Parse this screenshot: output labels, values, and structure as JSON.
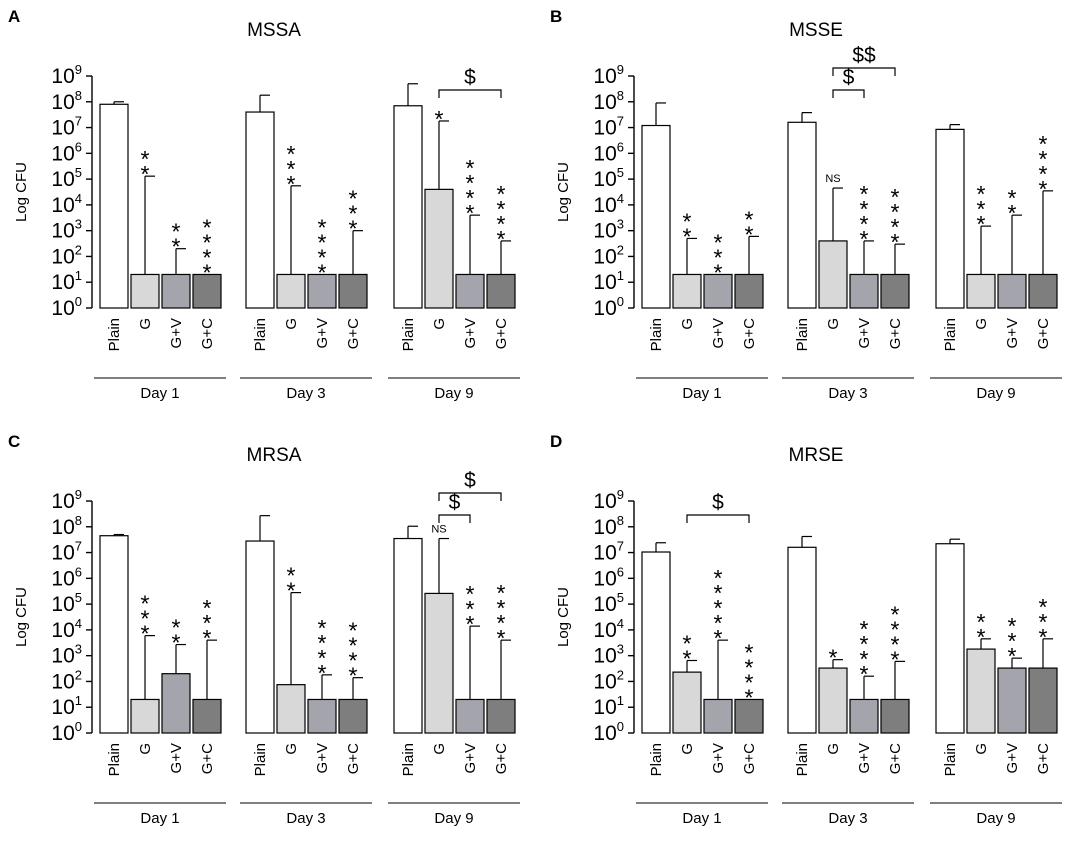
{
  "chart_data": [
    {
      "type": "bar",
      "panel": "A",
      "title": "MSSA",
      "ylabel": "Log CFU",
      "yscale": "log10",
      "ylim_exp": [
        0,
        9
      ],
      "yticks": [
        "10",
        "10",
        "10",
        "10",
        "10",
        "10",
        "10",
        "10",
        "10",
        "10"
      ],
      "ytick_exps": [
        "0",
        "1",
        "2",
        "3",
        "4",
        "5",
        "6",
        "7",
        "8",
        "9"
      ],
      "categories": [
        "Plain",
        "G",
        "G+V",
        "G+C"
      ],
      "groups": [
        {
          "label": "Day 1",
          "bars": [
            {
              "cat": "Plain",
              "value": 80000000.0,
              "err": 100000000.0,
              "sig": ""
            },
            {
              "cat": "G",
              "value": 20,
              "err": 130000.0,
              "sig": "**"
            },
            {
              "cat": "G+V",
              "value": 20,
              "err": 200,
              "sig": "**"
            },
            {
              "cat": "G+C",
              "value": 20,
              "err": 20,
              "sig": "****"
            }
          ]
        },
        {
          "label": "Day 3",
          "bars": [
            {
              "cat": "Plain",
              "value": 40000000.0,
              "err": 180000000.0,
              "sig": ""
            },
            {
              "cat": "G",
              "value": 20,
              "err": 55000.0,
              "sig": "***"
            },
            {
              "cat": "G+V",
              "value": 20,
              "err": 20,
              "sig": "****"
            },
            {
              "cat": "G+C",
              "value": 20,
              "err": 1000,
              "sig": "***"
            }
          ]
        },
        {
          "label": "Day 9",
          "bars": [
            {
              "cat": "Plain",
              "value": 70000000.0,
              "err": 500000000.0,
              "sig": ""
            },
            {
              "cat": "G",
              "value": 40000.0,
              "err": 18000000.0,
              "sig": "*"
            },
            {
              "cat": "G+V",
              "value": 20,
              "err": 4000,
              "sig": "****"
            },
            {
              "cat": "G+C",
              "value": 20,
              "err": 400,
              "sig": "****"
            }
          ]
        }
      ],
      "brackets": [
        {
          "group": 2,
          "from": 1,
          "to": 3,
          "label": "$",
          "level": 0
        }
      ]
    },
    {
      "type": "bar",
      "panel": "B",
      "title": "MSSE",
      "ylabel": "Log CFU",
      "yscale": "log10",
      "ylim_exp": [
        0,
        9
      ],
      "yticks": [
        "10",
        "10",
        "10",
        "10",
        "10",
        "10",
        "10",
        "10",
        "10",
        "10"
      ],
      "ytick_exps": [
        "0",
        "1",
        "2",
        "3",
        "4",
        "5",
        "6",
        "7",
        "8",
        "9"
      ],
      "categories": [
        "Plain",
        "G",
        "G+V",
        "G+C"
      ],
      "groups": [
        {
          "label": "Day 1",
          "bars": [
            {
              "cat": "Plain",
              "value": 12000000.0,
              "err": 90000000.0,
              "sig": ""
            },
            {
              "cat": "G",
              "value": 20,
              "err": 500,
              "sig": "**"
            },
            {
              "cat": "G+V",
              "value": 20,
              "err": 20,
              "sig": "***"
            },
            {
              "cat": "G+C",
              "value": 20,
              "err": 600,
              "sig": "**"
            }
          ]
        },
        {
          "label": "Day 3",
          "bars": [
            {
              "cat": "Plain",
              "value": 16000000.0,
              "err": 38000000.0,
              "sig": ""
            },
            {
              "cat": "G",
              "value": 400,
              "err": 45000.0,
              "sig": "NS"
            },
            {
              "cat": "G+V",
              "value": 20,
              "err": 400,
              "sig": "****"
            },
            {
              "cat": "G+C",
              "value": 20,
              "err": 300,
              "sig": "****"
            }
          ]
        },
        {
          "label": "Day 9",
          "bars": [
            {
              "cat": "Plain",
              "value": 8500000.0,
              "err": 13000000.0,
              "sig": ""
            },
            {
              "cat": "G",
              "value": 20,
              "err": 1500,
              "sig": "***"
            },
            {
              "cat": "G+V",
              "value": 20,
              "err": 4000,
              "sig": "**"
            },
            {
              "cat": "G+C",
              "value": 20,
              "err": 35000.0,
              "sig": "****"
            }
          ]
        }
      ],
      "brackets": [
        {
          "group": 1,
          "from": 1,
          "to": 2,
          "label": "$",
          "level": 0
        },
        {
          "group": 1,
          "from": 1,
          "to": 3,
          "label": "$$",
          "level": 1
        }
      ]
    },
    {
      "type": "bar",
      "panel": "C",
      "title": "MRSA",
      "ylabel": "Log CFU",
      "yscale": "log10",
      "ylim_exp": [
        0,
        9
      ],
      "yticks": [
        "10",
        "10",
        "10",
        "10",
        "10",
        "10",
        "10",
        "10",
        "10",
        "10"
      ],
      "ytick_exps": [
        "0",
        "1",
        "2",
        "3",
        "4",
        "5",
        "6",
        "7",
        "8",
        "9"
      ],
      "categories": [
        "Plain",
        "G",
        "G+V",
        "G+C"
      ],
      "groups": [
        {
          "label": "Day 1",
          "bars": [
            {
              "cat": "Plain",
              "value": 45000000.0,
              "err": 50000000.0,
              "sig": ""
            },
            {
              "cat": "G",
              "value": 20,
              "err": 6000,
              "sig": "***"
            },
            {
              "cat": "G+V",
              "value": 200,
              "err": 2700,
              "sig": "**"
            },
            {
              "cat": "G+C",
              "value": 20,
              "err": 4000,
              "sig": "***"
            }
          ]
        },
        {
          "label": "Day 3",
          "bars": [
            {
              "cat": "Plain",
              "value": 28000000.0,
              "err": 270000000.0,
              "sig": ""
            },
            {
              "cat": "G",
              "value": 75,
              "err": 280000.0,
              "sig": "**"
            },
            {
              "cat": "G+V",
              "value": 20,
              "err": 180,
              "sig": "****"
            },
            {
              "cat": "G+C",
              "value": 20,
              "err": 140,
              "sig": "****"
            }
          ]
        },
        {
          "label": "Day 9",
          "bars": [
            {
              "cat": "Plain",
              "value": 35000000.0,
              "err": 105000000.0,
              "sig": ""
            },
            {
              "cat": "G",
              "value": 260000.0,
              "err": 35000000.0,
              "sig": "NS"
            },
            {
              "cat": "G+V",
              "value": 20,
              "err": 14000.0,
              "sig": "***"
            },
            {
              "cat": "G+C",
              "value": 20,
              "err": 4000,
              "sig": "****"
            }
          ]
        }
      ],
      "brackets": [
        {
          "group": 2,
          "from": 1,
          "to": 2,
          "label": "$",
          "level": 0
        },
        {
          "group": 2,
          "from": 1,
          "to": 3,
          "label": "$",
          "level": 1
        }
      ]
    },
    {
      "type": "bar",
      "panel": "D",
      "title": "MRSE",
      "ylabel": "Log CFU",
      "yscale": "log10",
      "ylim_exp": [
        0,
        9
      ],
      "yticks": [
        "10",
        "10",
        "10",
        "10",
        "10",
        "10",
        "10",
        "10",
        "10",
        "10"
      ],
      "ytick_exps": [
        "0",
        "1",
        "2",
        "3",
        "4",
        "5",
        "6",
        "7",
        "8",
        "9"
      ],
      "categories": [
        "Plain",
        "G",
        "G+V",
        "G+C"
      ],
      "groups": [
        {
          "label": "Day 1",
          "bars": [
            {
              "cat": "Plain",
              "value": 10500000.0,
              "err": 24000000.0,
              "sig": ""
            },
            {
              "cat": "G",
              "value": 230,
              "err": 650,
              "sig": "**"
            },
            {
              "cat": "G+V",
              "value": 20,
              "err": 4000,
              "sig": "*****"
            },
            {
              "cat": "G+C",
              "value": 20,
              "err": 20,
              "sig": "****"
            }
          ]
        },
        {
          "label": "Day 3",
          "bars": [
            {
              "cat": "Plain",
              "value": 16000000.0,
              "err": 42000000.0,
              "sig": ""
            },
            {
              "cat": "G",
              "value": 330,
              "err": 700,
              "sig": "*"
            },
            {
              "cat": "G+V",
              "value": 20,
              "err": 160,
              "sig": "****"
            },
            {
              "cat": "G+C",
              "value": 20,
              "err": 600,
              "sig": "****"
            }
          ]
        },
        {
          "label": "Day 9",
          "bars": [
            {
              "cat": "Plain",
              "value": 22000000.0,
              "err": 33000000.0,
              "sig": ""
            },
            {
              "cat": "G",
              "value": 1800,
              "err": 4500,
              "sig": "**"
            },
            {
              "cat": "G+V",
              "value": 330,
              "err": 800,
              "sig": "***"
            },
            {
              "cat": "G+C",
              "value": 330,
              "err": 4500,
              "sig": "***"
            }
          ]
        }
      ],
      "brackets": [
        {
          "group": 0,
          "from": 1,
          "to": 3,
          "label": "$",
          "level": 0
        }
      ]
    }
  ],
  "colors": {
    "Plain": "#ffffff",
    "G": "#d8d8d8",
    "G+V": "#a4a4ac",
    "G+C": "#7e7e7e",
    "stroke": "#000000"
  }
}
